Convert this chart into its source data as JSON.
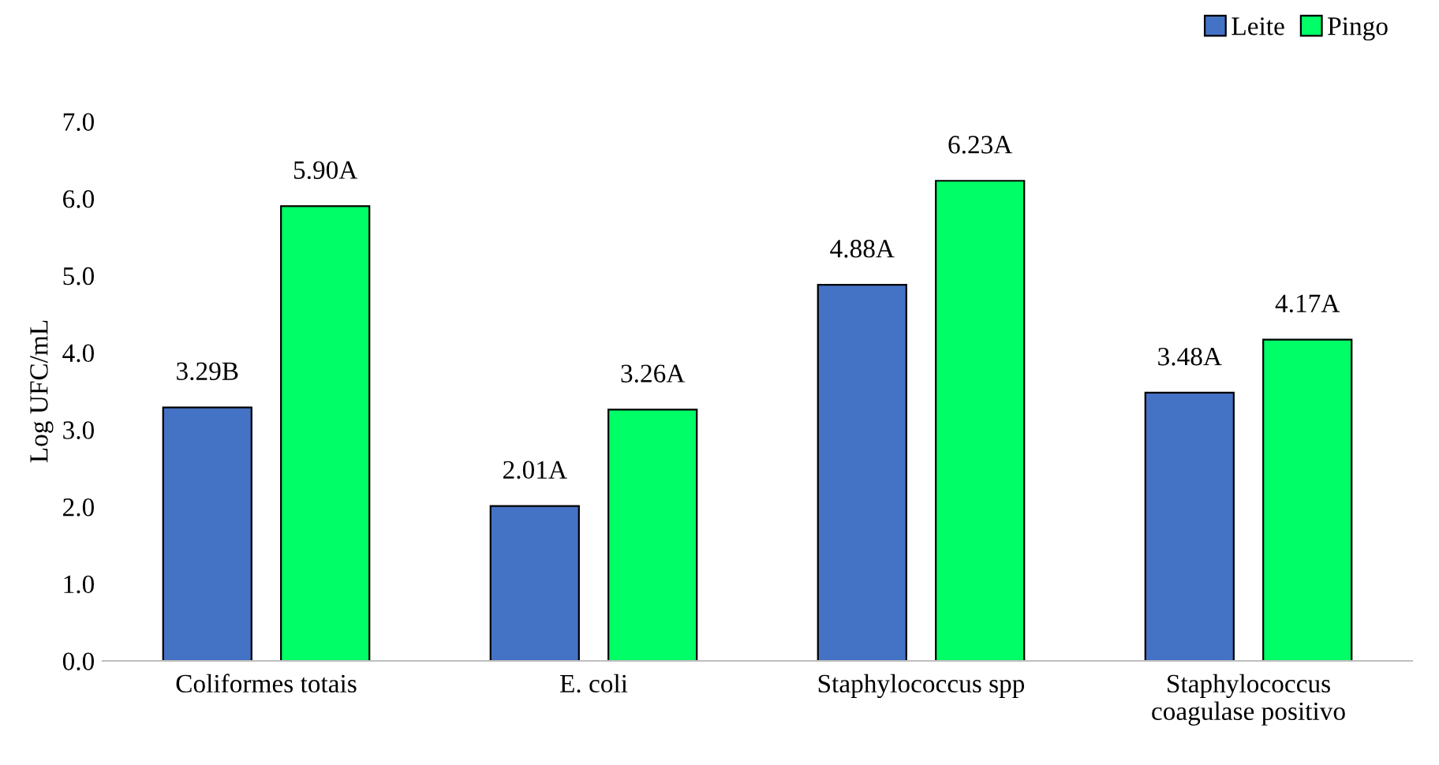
{
  "chart_data": {
    "type": "bar",
    "ylabel": "Log UFC/mL",
    "categories": [
      "Coliformes totais",
      "E. coli",
      "Staphylococcus spp",
      "Staphylococcus\ncoagulase positivo"
    ],
    "series": [
      {
        "name": "Leite",
        "color": "#4472c4",
        "values": [
          3.29,
          2.01,
          4.88,
          3.48
        ],
        "value_labels": [
          "3.29B",
          "2.01A",
          "4.88A",
          "3.48A"
        ]
      },
      {
        "name": "Pingo",
        "color": "#00ff66",
        "values": [
          5.9,
          3.26,
          6.23,
          4.17
        ],
        "value_labels": [
          "5.90A",
          "3.26A",
          "6.23A",
          "4.17A"
        ]
      }
    ],
    "ylim": [
      0,
      7
    ],
    "yticks": [
      {
        "value": 0,
        "label": "0.0"
      },
      {
        "value": 1,
        "label": "1.0"
      },
      {
        "value": 2,
        "label": "2.0"
      },
      {
        "value": 3,
        "label": "3.0"
      },
      {
        "value": 4,
        "label": "4.0"
      },
      {
        "value": 5,
        "label": "5.0"
      },
      {
        "value": 6,
        "label": "6.0"
      },
      {
        "value": 7,
        "label": "7.0"
      }
    ],
    "grid": false,
    "legend": "top right"
  }
}
